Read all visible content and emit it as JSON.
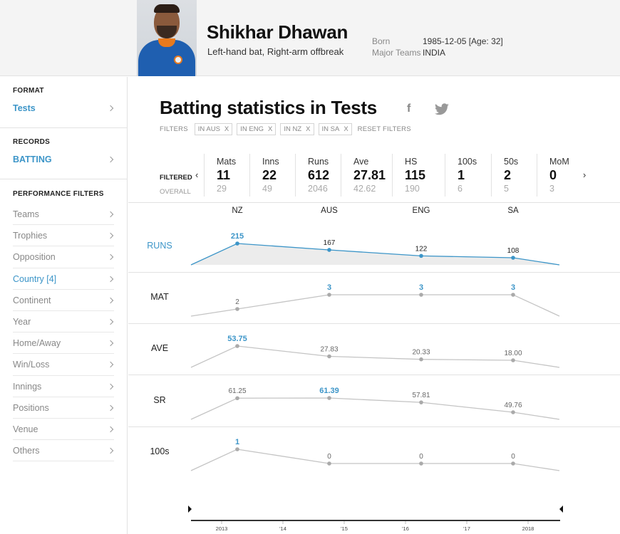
{
  "player": {
    "name": "Shikhar Dhawan",
    "style": "Left-hand bat, Right-arm offbreak",
    "born_label": "Born",
    "born_value": "1985-12-05 [Age: 32]",
    "teams_label": "Major Teams",
    "teams_value": "INDIA"
  },
  "sidebar": {
    "format_title": "FORMAT",
    "format_value": "Tests",
    "records_title": "RECORDS",
    "records_value": "BATTING",
    "filters_title": "PERFORMANCE FILTERS",
    "filters": [
      {
        "label": "Teams",
        "active": false
      },
      {
        "label": "Trophies",
        "active": false
      },
      {
        "label": "Opposition",
        "active": false
      },
      {
        "label": "Country [4]",
        "active": true
      },
      {
        "label": "Continent",
        "active": false
      },
      {
        "label": "Year",
        "active": false
      },
      {
        "label": "Home/Away",
        "active": false
      },
      {
        "label": "Win/Loss",
        "active": false
      },
      {
        "label": "Innings",
        "active": false
      },
      {
        "label": "Positions",
        "active": false
      },
      {
        "label": "Venue",
        "active": false
      },
      {
        "label": "Others",
        "active": false
      }
    ]
  },
  "main": {
    "title": "Batting statistics in Tests",
    "facebook_glyph": "f",
    "filters_label": "FILTERS",
    "chips": [
      "IN AUS",
      "IN ENG",
      "IN NZ",
      "IN SA"
    ],
    "chip_remove": "X",
    "reset_label": "RESET FILTERS",
    "filtered_label": "FILTERED",
    "overall_label": "OVERALL",
    "prev_arrow": "‹",
    "next_arrow": "›"
  },
  "stats": [
    {
      "name": "Mats",
      "filtered": "11",
      "overall": "29"
    },
    {
      "name": "Inns",
      "filtered": "22",
      "overall": "49"
    },
    {
      "name": "Runs",
      "filtered": "612",
      "overall": "2046"
    },
    {
      "name": "Ave",
      "filtered": "27.81",
      "overall": "42.62"
    },
    {
      "name": "HS",
      "filtered": "115",
      "overall": "190"
    },
    {
      "name": "100s",
      "filtered": "1",
      "overall": "6"
    },
    {
      "name": "50s",
      "filtered": "2",
      "overall": "5"
    },
    {
      "name": "MoM",
      "filtered": "0",
      "overall": "3"
    }
  ],
  "chart_data": {
    "type": "line",
    "categories": [
      "NZ",
      "AUS",
      "ENG",
      "SA"
    ],
    "series": [
      {
        "name": "RUNS",
        "values": [
          215,
          167,
          122,
          108
        ],
        "labels": [
          "215",
          "167",
          "122",
          "108"
        ],
        "highlight_index": 0
      },
      {
        "name": "MAT",
        "values": [
          2,
          3,
          3,
          3
        ],
        "labels": [
          "2",
          "3",
          "3",
          "3"
        ],
        "highlight_index": [
          1,
          2,
          3
        ]
      },
      {
        "name": "AVE",
        "values": [
          53.75,
          27.83,
          20.33,
          18.0
        ],
        "labels": [
          "53.75",
          "27.83",
          "20.33",
          "18.00"
        ],
        "highlight_index": 0
      },
      {
        "name": "SR",
        "values": [
          61.25,
          61.39,
          57.81,
          49.76
        ],
        "labels": [
          "61.25",
          "61.39",
          "57.81",
          "49.76"
        ],
        "highlight_index": 1
      },
      {
        "name": "100s",
        "values": [
          1,
          0,
          0,
          0
        ],
        "labels": [
          "1",
          "0",
          "0",
          "0"
        ],
        "highlight_index": 0
      }
    ],
    "timeline_ticks": [
      "2013",
      "'14",
      "'15",
      "'16",
      "'17",
      "2018"
    ],
    "colors": {
      "accent": "#3c95c8",
      "muted": "#c4c4c4",
      "area": "#ececec"
    }
  }
}
